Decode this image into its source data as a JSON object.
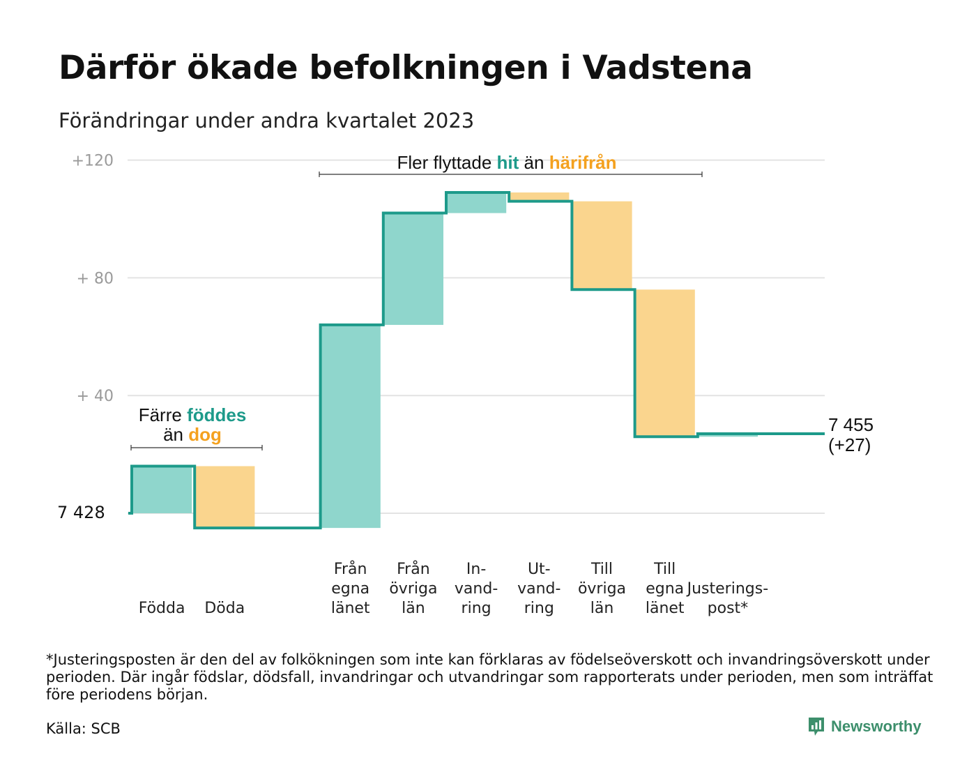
{
  "title": "Därför ökade befolkningen i Vadstena",
  "subtitle": "Förändringar under andra kvartalet 2023",
  "colors": {
    "increase": "#8fd6cc",
    "decrease": "#fad58e",
    "line": "#1d9a8a",
    "teal_text": "#1d9a8a",
    "orange_text": "#f4a11f",
    "grid": "#e3e3e3",
    "brand": "#3d8f6c"
  },
  "annotations": {
    "births": {
      "line1": "Färre",
      "line1_bold": "föddes",
      "line2": "än",
      "line2_bold": "dog"
    },
    "migration": {
      "text1": "Fler flyttade",
      "bold1": "hit",
      "text2": "än",
      "bold2": "härifrån"
    },
    "start_label": "7  428",
    "end_label_line1": "7 455",
    "end_label_line2": "(+27)"
  },
  "chart_data": {
    "type": "waterfall",
    "base_value": 7428,
    "yticks": [
      "+120",
      "+  80",
      "+  40"
    ],
    "yticks_values": [
      120,
      80,
      40
    ],
    "ylim": [
      -5,
      125
    ],
    "grid": true,
    "steps": [
      {
        "label": [
          "Födda"
        ],
        "delta": 16,
        "kind": "increase"
      },
      {
        "label": [
          "Döda"
        ],
        "delta": -21,
        "kind": "decrease"
      },
      {
        "label": [
          ""
        ],
        "delta": 0,
        "kind": "gap"
      },
      {
        "label": [
          "Från",
          "egna",
          "länet"
        ],
        "delta": 69,
        "kind": "increase"
      },
      {
        "label": [
          "Från",
          "övriga",
          "län"
        ],
        "delta": 38,
        "kind": "increase"
      },
      {
        "label": [
          "In-",
          "vand-",
          "ring"
        ],
        "delta": 7,
        "kind": "increase"
      },
      {
        "label": [
          "Ut-",
          "vand-",
          "ring"
        ],
        "delta": -3,
        "kind": "decrease"
      },
      {
        "label": [
          "Till",
          "övriga",
          "län"
        ],
        "delta": -30,
        "kind": "decrease"
      },
      {
        "label": [
          "Till",
          "egna",
          "länet"
        ],
        "delta": -50,
        "kind": "decrease"
      },
      {
        "label": [
          "Justerings-",
          "post*"
        ],
        "delta": 1,
        "kind": "increase"
      }
    ],
    "end_value": 7455,
    "net_change": 27
  },
  "footnote": "*Justeringsposten är den del av folkökningen som inte kan förklaras av födelseöverskott och invandringsöverskott under perioden. Där ingår födslar, dödsfall, invandringar och utvandringar som rapporterats under perioden, men som inträffat före periodens början.",
  "source": "Källa: SCB",
  "brand": {
    "name": "Newsworthy",
    "icon": "newsworthy-logo-icon"
  }
}
